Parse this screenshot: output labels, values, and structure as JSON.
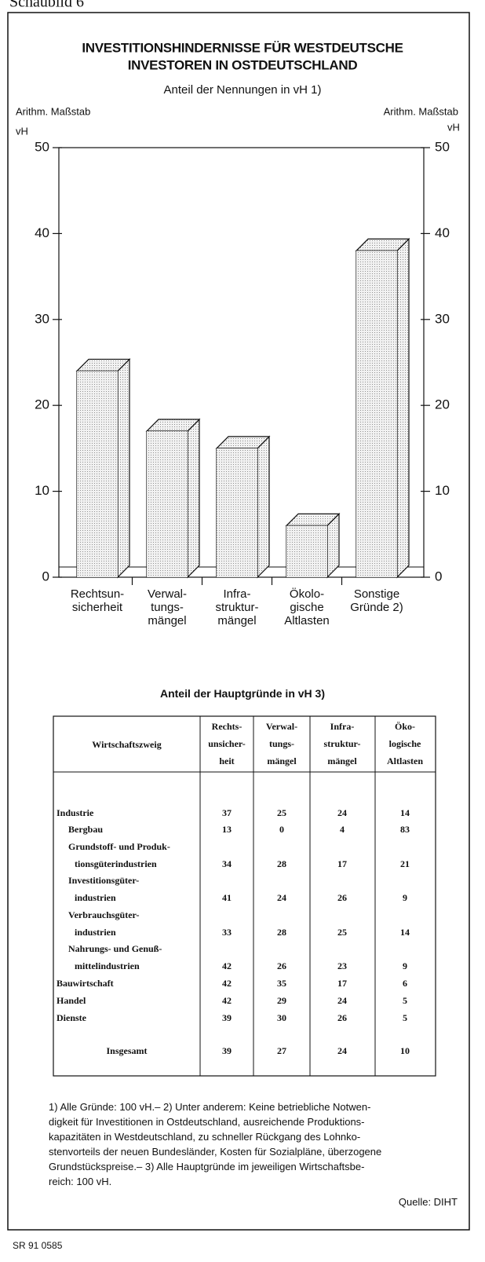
{
  "page_label": "Schaubild 6",
  "chart_data": {
    "type": "bar3d",
    "title": [
      "INVESTITIONSHINDERNISSE FÜR WESTDEUTSCHE",
      "INVESTOREN IN OSTDEUTSCHLAND"
    ],
    "subtitle": "Anteil der Nennungen in vH 1)",
    "scale_left": "Arithm. Maßstab",
    "scale_right": "Arithm. Maßstab",
    "unit_left": "vH",
    "unit_right": "vH",
    "categories": [
      "Rechtsun-\nsicherheit",
      "Verwal-\ntungs-\nmängel",
      "Infra-\nstruktur-\nmängel",
      "Ökolo-\ngische\nAltlasten",
      "Sonstige\nGründe 2)"
    ],
    "values": [
      24,
      17,
      15,
      6,
      38
    ],
    "color": "#e6e6e6",
    "ylim": [
      0,
      50
    ],
    "yticks": [
      0,
      10,
      20,
      30,
      40,
      50
    ]
  },
  "table": {
    "title": "Anteil der Hauptgründe in vH 3)",
    "header": [
      "Wirtschaftszweig",
      "Rechts-\nunsicher-\nheit",
      "Verwal-\ntungs-\nmängel",
      "Infra-\nstruktur-\nmängel",
      "Öko-\nlogische\nAltlasten"
    ],
    "rows": [
      {
        "label": "Industrie",
        "values": [
          37,
          25,
          24,
          14
        ]
      },
      {
        "label": "Bergbau",
        "values": [
          13,
          0,
          4,
          83
        ]
      },
      {
        "label": "Grundstoff- und Produk-\ntionsgüterindustrien",
        "values": [
          34,
          28,
          17,
          21
        ]
      },
      {
        "label": "Investitionsgüter-\nindustrien",
        "values": [
          41,
          24,
          26,
          9
        ]
      },
      {
        "label": "Verbrauchsgüter-\nindustrien",
        "values": [
          33,
          28,
          25,
          14
        ]
      },
      {
        "label": "Nahrungs- und Genuß-\nmittelindustrien",
        "values": [
          42,
          26,
          23,
          9
        ]
      },
      {
        "label": "Bauwirtschaft",
        "values": [
          42,
          35,
          17,
          6
        ]
      },
      {
        "label": "Handel",
        "values": [
          42,
          29,
          24,
          5
        ]
      },
      {
        "label": "Dienste",
        "values": [
          39,
          30,
          26,
          5
        ]
      }
    ],
    "total": {
      "label": "Insgesamt",
      "values": [
        39,
        27,
        24,
        10
      ]
    }
  },
  "footnotes": [
    "1) Alle Gründe: 100 vH.– 2) Unter anderem: Keine betriebliche Notwen-",
    "digkeit für Investitionen in Ostdeutschland, ausreichende Produktions-",
    "kapazitäten in Westdeutschland, zu schneller Rückgang des Lohnko-",
    "stenvorteils der neuen Bundesländer, Kosten für Sozialpläne, überzogene",
    "Grundstückspreise.– 3) Alle Hauptgründe im jeweiligen Wirtschaftsbe-",
    "reich: 100 vH."
  ],
  "source": "Quelle: DIHT",
  "code": "SR 91 0585"
}
